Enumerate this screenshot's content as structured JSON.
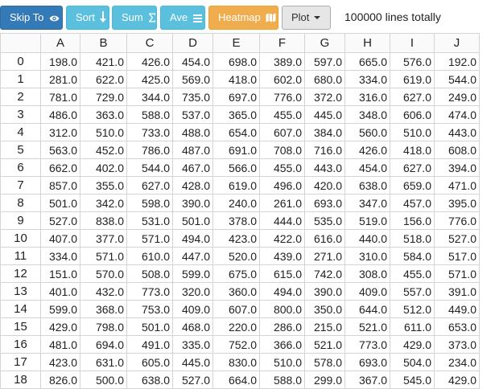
{
  "toolbar": {
    "skip_label": "Skip To",
    "sort_label": "Sort",
    "sum_label": "Sum",
    "ave_label": "Ave",
    "heatmap_label": "Heatmap",
    "plot_label": "Plot",
    "status_text": "100000 lines totally"
  },
  "colors": {
    "primary": "#337ab7",
    "info": "#5bc0de",
    "warning": "#f0ad4e"
  },
  "table": {
    "columns": [
      "A",
      "B",
      "C",
      "D",
      "E",
      "F",
      "G",
      "H",
      "I",
      "J"
    ],
    "rows": [
      {
        "index": "0",
        "cells": [
          "198.0",
          "421.0",
          "426.0",
          "454.0",
          "698.0",
          "389.0",
          "597.0",
          "665.0",
          "576.0",
          "192.0"
        ]
      },
      {
        "index": "1",
        "cells": [
          "281.0",
          "622.0",
          "425.0",
          "569.0",
          "418.0",
          "602.0",
          "680.0",
          "334.0",
          "619.0",
          "544.0"
        ]
      },
      {
        "index": "2",
        "cells": [
          "781.0",
          "729.0",
          "344.0",
          "735.0",
          "697.0",
          "776.0",
          "372.0",
          "316.0",
          "627.0",
          "249.0"
        ]
      },
      {
        "index": "3",
        "cells": [
          "486.0",
          "363.0",
          "588.0",
          "537.0",
          "365.0",
          "455.0",
          "445.0",
          "348.0",
          "606.0",
          "474.0"
        ]
      },
      {
        "index": "4",
        "cells": [
          "312.0",
          "510.0",
          "733.0",
          "488.0",
          "654.0",
          "607.0",
          "384.0",
          "560.0",
          "510.0",
          "443.0"
        ]
      },
      {
        "index": "5",
        "cells": [
          "563.0",
          "452.0",
          "786.0",
          "487.0",
          "691.0",
          "708.0",
          "716.0",
          "426.0",
          "418.0",
          "608.0"
        ]
      },
      {
        "index": "6",
        "cells": [
          "662.0",
          "402.0",
          "544.0",
          "467.0",
          "566.0",
          "455.0",
          "443.0",
          "454.0",
          "627.0",
          "394.0"
        ]
      },
      {
        "index": "7",
        "cells": [
          "857.0",
          "355.0",
          "627.0",
          "428.0",
          "619.0",
          "496.0",
          "420.0",
          "638.0",
          "659.0",
          "471.0"
        ]
      },
      {
        "index": "8",
        "cells": [
          "501.0",
          "342.0",
          "598.0",
          "390.0",
          "240.0",
          "261.0",
          "693.0",
          "347.0",
          "457.0",
          "395.0"
        ]
      },
      {
        "index": "9",
        "cells": [
          "527.0",
          "838.0",
          "531.0",
          "501.0",
          "378.0",
          "444.0",
          "535.0",
          "519.0",
          "156.0",
          "776.0"
        ]
      },
      {
        "index": "10",
        "cells": [
          "407.0",
          "377.0",
          "571.0",
          "494.0",
          "423.0",
          "422.0",
          "616.0",
          "440.0",
          "518.0",
          "527.0"
        ]
      },
      {
        "index": "11",
        "cells": [
          "334.0",
          "571.0",
          "610.0",
          "447.0",
          "520.0",
          "439.0",
          "271.0",
          "310.0",
          "584.0",
          "517.0"
        ]
      },
      {
        "index": "12",
        "cells": [
          "151.0",
          "570.0",
          "508.0",
          "599.0",
          "675.0",
          "615.0",
          "742.0",
          "308.0",
          "455.0",
          "571.0"
        ]
      },
      {
        "index": "13",
        "cells": [
          "401.0",
          "432.0",
          "773.0",
          "320.0",
          "360.0",
          "494.0",
          "390.0",
          "409.0",
          "557.0",
          "391.0"
        ]
      },
      {
        "index": "14",
        "cells": [
          "599.0",
          "368.0",
          "753.0",
          "409.0",
          "607.0",
          "800.0",
          "350.0",
          "644.0",
          "512.0",
          "449.0"
        ]
      },
      {
        "index": "15",
        "cells": [
          "429.0",
          "798.0",
          "501.0",
          "468.0",
          "220.0",
          "286.0",
          "215.0",
          "521.0",
          "611.0",
          "653.0"
        ]
      },
      {
        "index": "16",
        "cells": [
          "481.0",
          "694.0",
          "491.0",
          "335.0",
          "752.0",
          "366.0",
          "521.0",
          "773.0",
          "429.0",
          "373.0"
        ]
      },
      {
        "index": "17",
        "cells": [
          "423.0",
          "631.0",
          "605.0",
          "445.0",
          "830.0",
          "510.0",
          "578.0",
          "693.0",
          "504.0",
          "234.0"
        ]
      },
      {
        "index": "18",
        "cells": [
          "826.0",
          "500.0",
          "638.0",
          "527.0",
          "664.0",
          "588.0",
          "299.0",
          "367.0",
          "545.0",
          "429.0"
        ]
      }
    ]
  }
}
